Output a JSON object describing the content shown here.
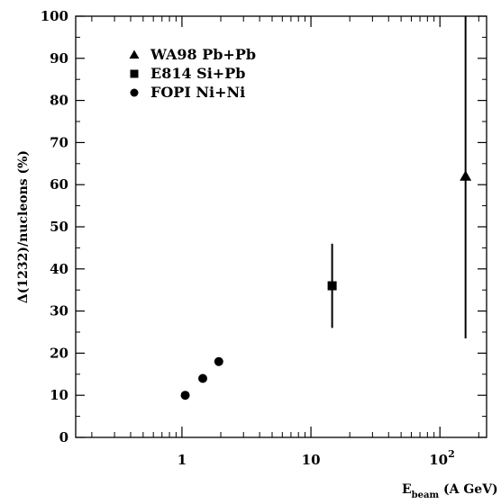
{
  "chart_data": {
    "type": "scatter",
    "title": "",
    "xlabel": "E_beam (A GeV)",
    "xlabel_main": "E",
    "xlabel_sub": "beam",
    "xlabel_unit": " (A GeV)",
    "ylabel": "Δ(1232)/nucleons (%)",
    "xscale": "log",
    "xlim": [
      0.15,
      230
    ],
    "ylim": [
      0,
      100
    ],
    "x_ticks": [
      {
        "value": 1,
        "label": "1"
      },
      {
        "value": 10,
        "label": "10"
      },
      {
        "value": 100,
        "label": "10",
        "exp": "2"
      }
    ],
    "y_ticks": [
      0,
      10,
      20,
      30,
      40,
      50,
      60,
      70,
      80,
      90,
      100
    ],
    "y_tick_labels": [
      "0",
      "10",
      "20",
      "30",
      "40",
      "50",
      "60",
      "70",
      "80",
      "90",
      "100"
    ],
    "grid": false,
    "legend_position": "top-left",
    "series": [
      {
        "name": "WA98 Pb+Pb",
        "marker": "triangle",
        "points": [
          {
            "x": 158,
            "y": 62,
            "yerr_low": 23.5,
            "yerr_high": 100
          }
        ]
      },
      {
        "name": "E814 Si+Pb",
        "marker": "square",
        "points": [
          {
            "x": 14.6,
            "y": 36,
            "yerr_low": 26,
            "yerr_high": 46
          }
        ]
      },
      {
        "name": "FOPI Ni+Ni",
        "marker": "circle",
        "points": [
          {
            "x": 1.06,
            "y": 10
          },
          {
            "x": 1.45,
            "y": 14
          },
          {
            "x": 1.93,
            "y": 18
          }
        ]
      }
    ]
  }
}
